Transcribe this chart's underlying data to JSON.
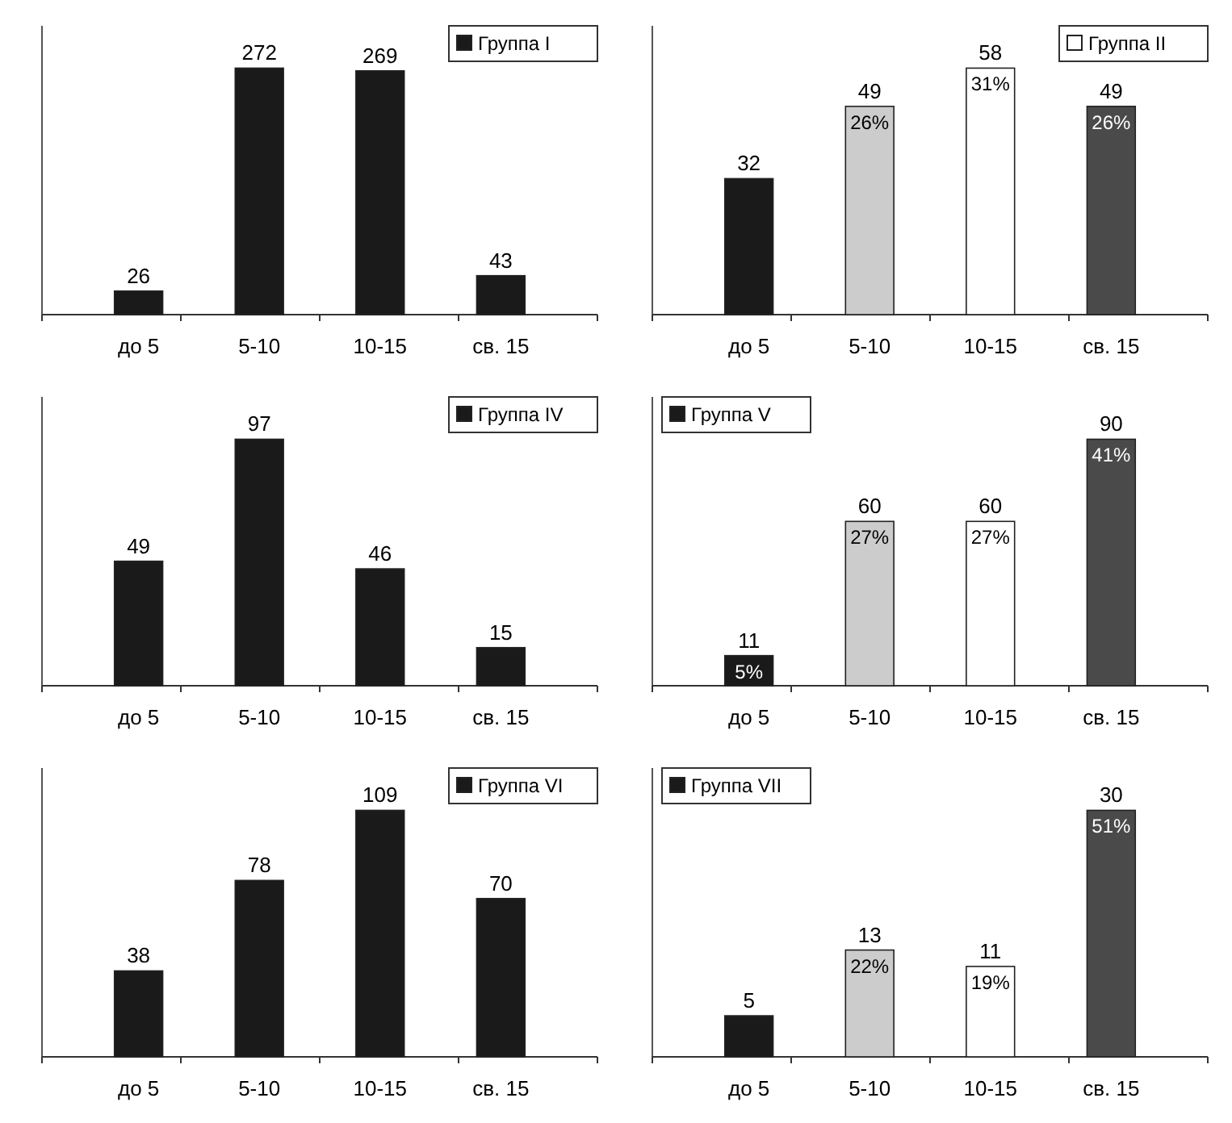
{
  "chart_data": [
    {
      "type": "bar",
      "categories": [
        "до 5",
        "5-10",
        "10-15",
        "св. 15"
      ],
      "series": [
        {
          "name": "Группа I",
          "color": "#1a1a1a",
          "values": [
            26,
            272,
            269,
            43
          ]
        }
      ],
      "data_labels": true,
      "legend": "top right"
    },
    {
      "type": "bar",
      "categories": [
        "до 5",
        "5-10",
        "10-15",
        "св. 15"
      ],
      "series": [
        {
          "name": "Группа II",
          "color": "#ffffff",
          "colors": [
            "#1a1a1a",
            "#cccccc",
            "#ffffff",
            "#4a4a4a"
          ],
          "values": [
            32,
            49,
            58,
            49
          ]
        }
      ],
      "data_labels": true,
      "legend": "top right",
      "annotations": [
        {
          "text": "26%",
          "x": "5-10",
          "y": 49
        },
        {
          "text": "31%",
          "x": "10-15",
          "y": 58
        },
        {
          "text": "26%",
          "x": "св. 15",
          "y": 49
        }
      ]
    },
    {
      "type": "bar",
      "categories": [
        "до 5",
        "5-10",
        "10-15",
        "св. 15"
      ],
      "series": [
        {
          "name": "Группа IV",
          "color": "#1a1a1a",
          "values": [
            49,
            97,
            46,
            15
          ]
        }
      ],
      "data_labels": true,
      "legend": "top right"
    },
    {
      "type": "bar",
      "categories": [
        "до 5",
        "5-10",
        "10-15",
        "св. 15"
      ],
      "series": [
        {
          "name": "Группа V",
          "color": "#1a1a1a",
          "colors": [
            "#1a1a1a",
            "#cccccc",
            "#ffffff",
            "#4a4a4a"
          ],
          "values": [
            11,
            60,
            60,
            90
          ]
        }
      ],
      "data_labels": true,
      "legend": "top left",
      "annotations": [
        {
          "text": "5%",
          "x": "до 5",
          "y": 11
        },
        {
          "text": "27%",
          "x": "5-10",
          "y": 60
        },
        {
          "text": "27%",
          "x": "10-15",
          "y": 60
        },
        {
          "text": "41%",
          "x": "св. 15",
          "y": 90
        }
      ]
    },
    {
      "type": "bar",
      "categories": [
        "до 5",
        "5-10",
        "10-15",
        "св. 15"
      ],
      "series": [
        {
          "name": "Группа VI",
          "color": "#1a1a1a",
          "values": [
            38,
            78,
            109,
            70
          ]
        }
      ],
      "data_labels": true,
      "legend": "top right"
    },
    {
      "type": "bar",
      "categories": [
        "до 5",
        "5-10",
        "10-15",
        "св. 15"
      ],
      "series": [
        {
          "name": "Группа VII",
          "color": "#1a1a1a",
          "colors": [
            "#1a1a1a",
            "#cccccc",
            "#ffffff",
            "#4a4a4a"
          ],
          "values": [
            5,
            13,
            11,
            30
          ]
        }
      ],
      "data_labels": true,
      "legend": "top left",
      "annotations": [
        {
          "text": "22%",
          "x": "5-10",
          "y": 13
        },
        {
          "text": "19%",
          "x": "10-15",
          "y": 11
        },
        {
          "text": "51%",
          "x": "св. 15",
          "y": 30
        }
      ]
    }
  ]
}
